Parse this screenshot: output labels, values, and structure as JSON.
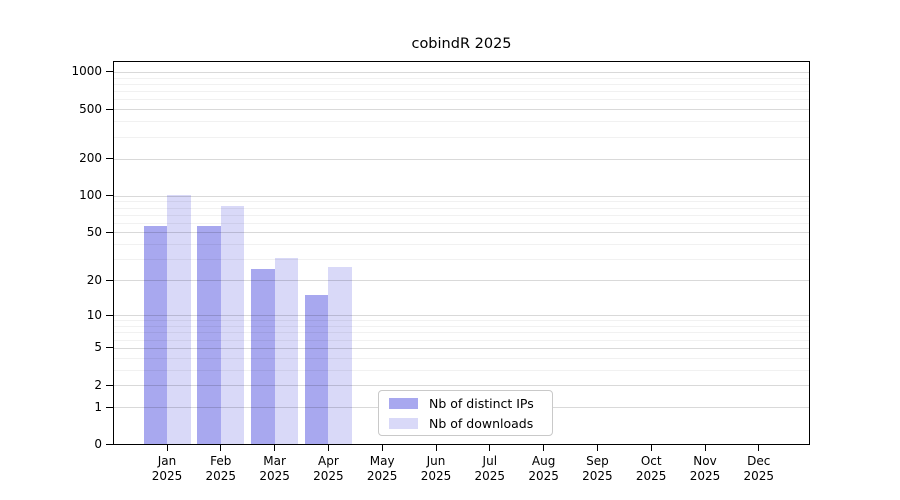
{
  "page": {
    "background": "#ffffff"
  },
  "chart_data": {
    "type": "bar",
    "title": "cobindR 2025",
    "categories": [
      "Jan 2025",
      "Feb 2025",
      "Mar 2025",
      "Apr 2025",
      "May 2025",
      "Jun 2025",
      "Jul 2025",
      "Aug 2025",
      "Sep 2025",
      "Oct 2025",
      "Nov 2025",
      "Dec 2025"
    ],
    "series": [
      {
        "name": "Nb of distinct IPs",
        "color": "#a8a8ef",
        "values": [
          56,
          56,
          25,
          15,
          0,
          0,
          0,
          0,
          0,
          0,
          0,
          0
        ]
      },
      {
        "name": "Nb of downloads",
        "color": "#d9d9f8",
        "values": [
          101,
          83,
          31,
          26,
          0,
          0,
          0,
          0,
          0,
          0,
          0,
          0
        ]
      }
    ],
    "xlabel": "",
    "ylabel": "",
    "y_scale": "log10(value+1)",
    "ylim": [
      0,
      1226
    ],
    "y_ticks": [
      0,
      1,
      2,
      5,
      10,
      20,
      50,
      100,
      200,
      500,
      1000
    ],
    "y_minor_gridlines": [
      3,
      4,
      6,
      7,
      8,
      9,
      30,
      40,
      60,
      70,
      80,
      90,
      300,
      400,
      600,
      700,
      800,
      900
    ],
    "grid": "horizontal",
    "legend_position": "inside-bottom-center",
    "colors": {
      "major_grid": "#d9d9d9",
      "minor_grid": "#f1f1f1",
      "spine": "#000000",
      "text": "#000000",
      "background": "#ffffff"
    }
  }
}
